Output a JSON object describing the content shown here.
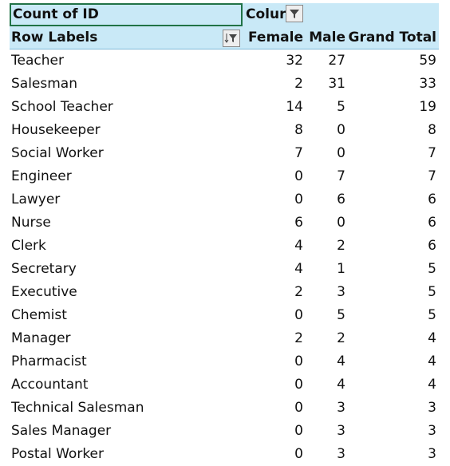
{
  "header": {
    "title_cell": "Count of ID",
    "column_labels": "Colur"
  },
  "columns": [
    "Row Labels",
    "Female",
    "Male",
    "Grand Total"
  ],
  "rows": [
    [
      "Teacher",
      32,
      27,
      59
    ],
    [
      "Salesman",
      2,
      31,
      33
    ],
    [
      "School Teacher",
      14,
      5,
      19
    ],
    [
      "Housekeeper",
      8,
      0,
      8
    ],
    [
      "Social Worker",
      7,
      0,
      7
    ],
    [
      "Engineer",
      0,
      7,
      7
    ],
    [
      "Lawyer",
      0,
      6,
      6
    ],
    [
      "Nurse",
      6,
      0,
      6
    ],
    [
      "Clerk",
      4,
      2,
      6
    ],
    [
      "Secretary",
      4,
      1,
      5
    ],
    [
      "Executive",
      2,
      3,
      5
    ],
    [
      "Chemist",
      0,
      5,
      5
    ],
    [
      "Manager",
      2,
      2,
      4
    ],
    [
      "Pharmacist",
      0,
      4,
      4
    ],
    [
      "Accountant",
      0,
      4,
      4
    ],
    [
      "Technical Salesman",
      0,
      3,
      3
    ],
    [
      "Sales Manager",
      0,
      3,
      3
    ],
    [
      "Postal Worker",
      0,
      3,
      3
    ]
  ]
}
